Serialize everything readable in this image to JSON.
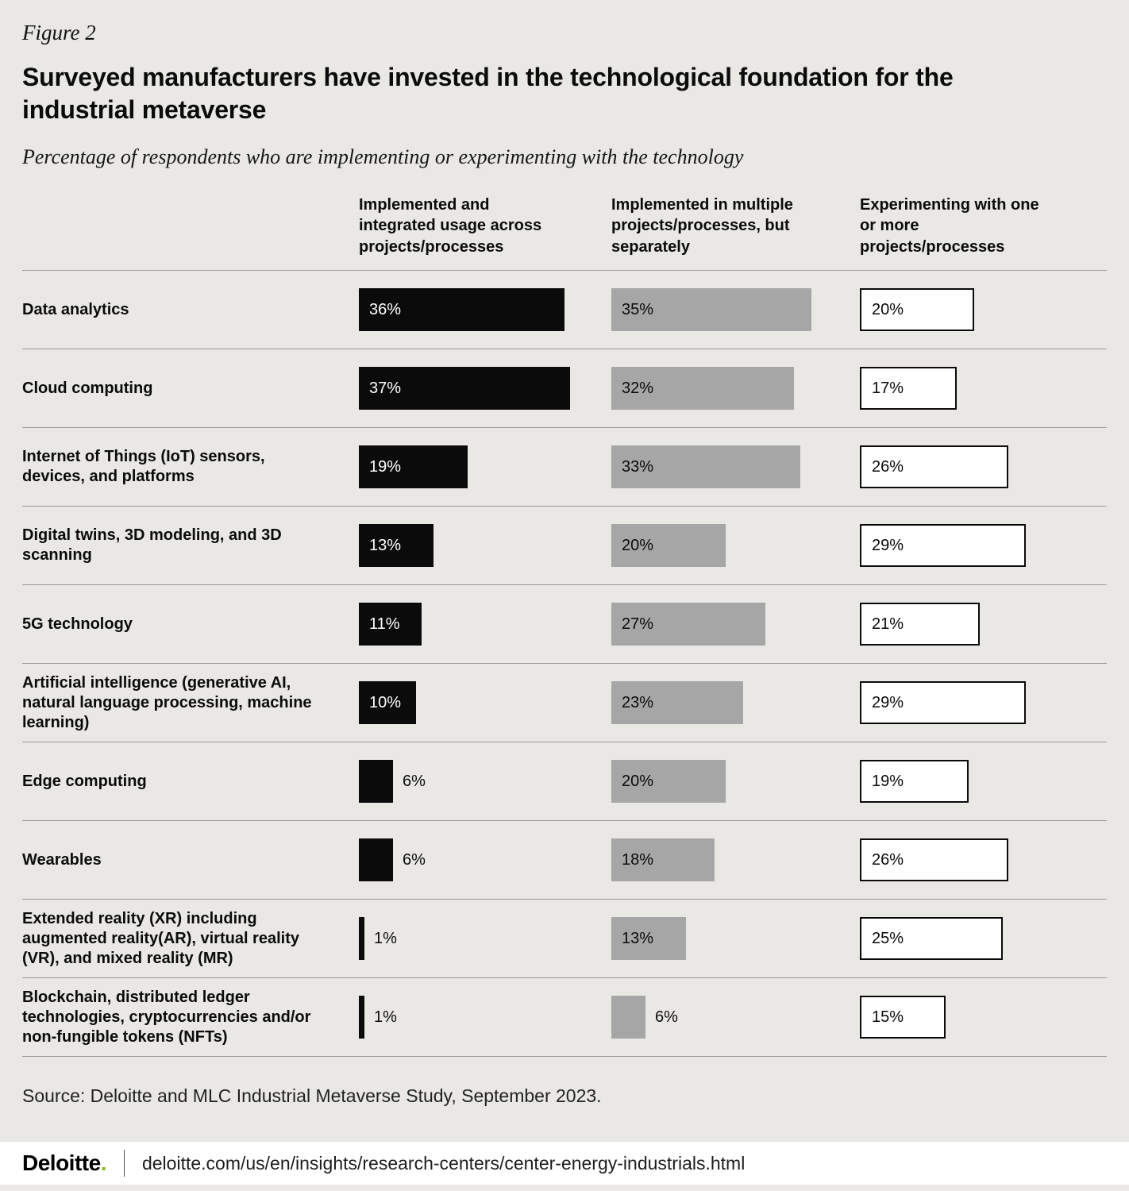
{
  "figure_label": "Figure 2",
  "title": "Surveyed manufacturers have invested in the technological foundation for the industrial metaverse",
  "subtitle": "Percentage of respondents who are implementing or experimenting with the technology",
  "chart_data": {
    "type": "bar",
    "orientation": "horizontal",
    "unit": "%",
    "xlim": [
      0,
      40
    ],
    "legend_position": "column-headers",
    "grid": false,
    "columns": [
      {
        "label": "Implemented and integrated usage across projects/processes",
        "style": "black",
        "color": "#0b0b0b"
      },
      {
        "label": "Implemented in multiple projects/processes, but separately",
        "style": "gray",
        "color": "#a6a6a6"
      },
      {
        "label": "Experimenting with one or more projects/processes",
        "style": "white",
        "color": "#ffffff"
      }
    ],
    "categories": [
      "Data analytics",
      "Cloud computing",
      "Internet of Things (IoT) sensors, devices, and platforms",
      "Digital twins, 3D modeling, and 3D scanning",
      "5G technology",
      "Artificial intelligence (generative AI, natural language processing, machine learning)",
      "Edge computing",
      "Wearables",
      "Extended reality (XR) including augmented reality(AR), virtual reality (VR), and mixed reality (MR)",
      "Blockchain, distributed ledger technologies, cryptocurrencies and/or non-fungible tokens (NFTs)"
    ],
    "series": [
      {
        "name": "Implemented and integrated usage across projects/processes",
        "values": [
          36,
          37,
          19,
          13,
          11,
          10,
          6,
          6,
          1,
          1
        ]
      },
      {
        "name": "Implemented in multiple projects/processes, but separately",
        "values": [
          35,
          32,
          33,
          20,
          27,
          23,
          20,
          18,
          13,
          6
        ]
      },
      {
        "name": "Experimenting with one or more projects/processes",
        "values": [
          20,
          17,
          26,
          29,
          21,
          29,
          19,
          26,
          25,
          15
        ]
      }
    ]
  },
  "source": "Source: Deloitte and MLC Industrial Metaverse Study, September 2023.",
  "footer": {
    "brand": "Deloitte",
    "brand_dot": ".",
    "url": "deloitte.com/us/en/insights/research-centers/center-energy-industrials.html"
  }
}
